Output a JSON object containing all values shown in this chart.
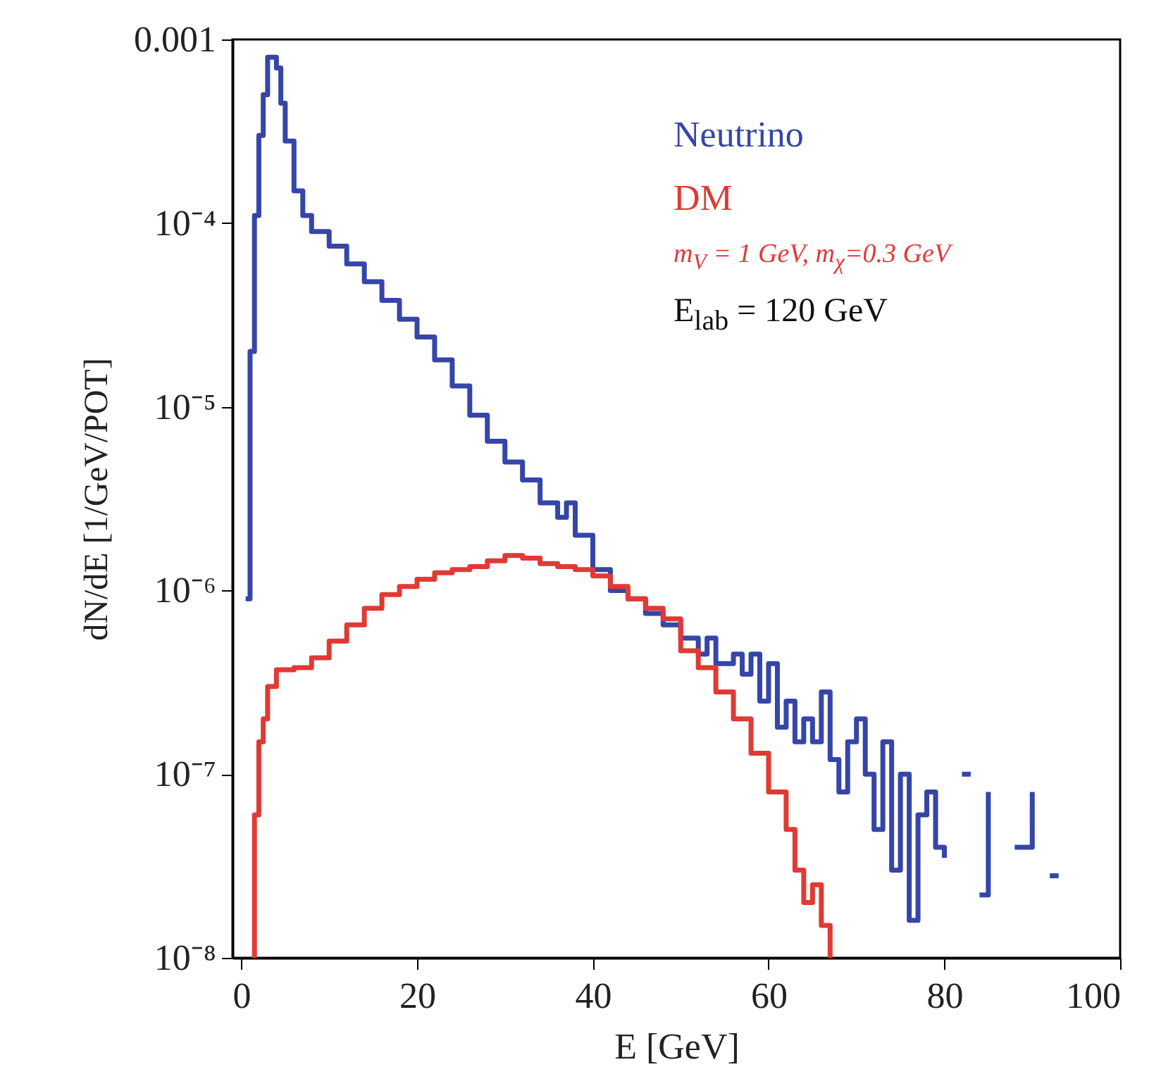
{
  "chart_data": {
    "type": "step",
    "xlabel": "E  [GeV]",
    "ylabel": "dN/dE  [1/GeV/POT]",
    "annotations": [
      "m$_{V}$ = 1 GeV, m$_{χ}$=0.3 GeV",
      "E$_{lab}$ = 120 GeV"
    ],
    "xlim": [
      -1,
      100
    ],
    "xticks": [
      0,
      20,
      40,
      60,
      80,
      100
    ],
    "ylim": [
      1e-08,
      0.001
    ],
    "yticks": [
      {
        "value": 1e-08,
        "label": "10⁻⁸"
      },
      {
        "value": 1e-07,
        "label": "10⁻⁷"
      },
      {
        "value": 1e-06,
        "label": "10⁻⁶"
      },
      {
        "value": 1e-05,
        "label": "10⁻⁵"
      },
      {
        "value": 0.0001,
        "label": "10⁻⁴"
      },
      0.001
    ],
    "log": "y",
    "grid": false,
    "marker": "none",
    "line_style": "solid",
    "series": [
      {
        "name": "Neutrino",
        "color": "#3545a8",
        "x": [
          0.5,
          1,
          1.5,
          2,
          2.5,
          3,
          4,
          4.5,
          5,
          6,
          7,
          8,
          10,
          12,
          14,
          16,
          18,
          20,
          22,
          24,
          26,
          28,
          30,
          32,
          34,
          36,
          37,
          38,
          40,
          42,
          44,
          46,
          48,
          50,
          52,
          53,
          54,
          56,
          57,
          58,
          59,
          60,
          61,
          62,
          63,
          64,
          65,
          66,
          67,
          68,
          69,
          70,
          71,
          72,
          73,
          74,
          75,
          76,
          77,
          78,
          79,
          80,
          81,
          82,
          83,
          83.5,
          84,
          85,
          86,
          88,
          90,
          91,
          92,
          93
        ],
        "values": [
          9e-07,
          2e-05,
          0.00011,
          0.0003,
          0.0005,
          0.0008,
          0.0007,
          0.00045,
          0.00028,
          0.00015,
          0.00011,
          9e-05,
          7.5e-05,
          6e-05,
          4.8e-05,
          3.8e-05,
          3e-05,
          2.4e-05,
          1.8e-05,
          1.3e-05,
          9e-06,
          6.5e-06,
          5e-06,
          4e-06,
          3e-06,
          2.5e-06,
          3e-06,
          2e-06,
          1.3e-06,
          1e-06,
          9e-07,
          7.5e-07,
          6.5e-07,
          5.5e-07,
          4.5e-07,
          5.5e-07,
          4e-07,
          4.5e-07,
          3.5e-07,
          4.5e-07,
          2.5e-07,
          4e-07,
          1.8e-07,
          2.5e-07,
          1.5e-07,
          2e-07,
          1.5e-07,
          2.8e-07,
          1.2e-07,
          8e-08,
          1.5e-07,
          2e-07,
          1e-07,
          5e-08,
          1.5e-07,
          3e-08,
          1e-07,
          1.6e-08,
          6e-08,
          8e-08,
          4e-08,
          3.5e-08,
          null,
          1e-07,
          1e-07,
          null,
          2.2e-08,
          8e-08,
          null,
          4e-08,
          8e-08,
          null,
          2.8e-08,
          2.8e-08
        ]
      },
      {
        "name": "DM",
        "color": "#e03a35",
        "x": [
          1.3,
          1.5,
          2,
          2.5,
          3,
          4,
          6,
          8,
          10,
          12,
          14,
          16,
          18,
          20,
          22,
          24,
          26,
          28,
          30,
          32,
          34,
          36,
          38,
          40,
          42,
          44,
          46,
          48,
          50,
          52,
          54,
          56,
          58,
          60,
          62,
          63,
          64,
          65,
          66,
          67
        ],
        "values": [
          1e-08,
          6e-08,
          1.5e-07,
          2e-07,
          3e-07,
          3.7e-07,
          3.8e-07,
          4.3e-07,
          5.3e-07,
          6.5e-07,
          8e-07,
          9.5e-07,
          1.05e-06,
          1.15e-06,
          1.25e-06,
          1.3e-06,
          1.35e-06,
          1.45e-06,
          1.55e-06,
          1.5e-06,
          1.4e-06,
          1.35e-06,
          1.3e-06,
          1.2e-06,
          1.05e-06,
          9e-07,
          8e-07,
          7e-07,
          4.7e-07,
          3.8e-07,
          2.8e-07,
          2e-07,
          1.3e-07,
          8e-08,
          5e-08,
          3e-08,
          2e-08,
          2.5e-08,
          1.5e-08,
          1e-08
        ]
      }
    ]
  }
}
